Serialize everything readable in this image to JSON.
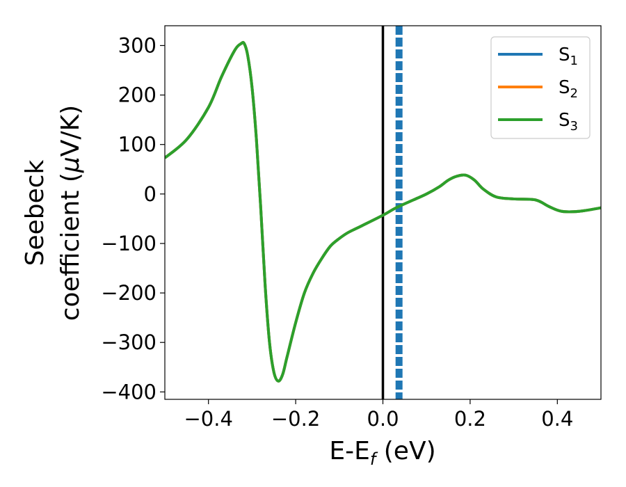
{
  "chart_data": {
    "type": "line",
    "xlabel": {
      "main": "E-E",
      "sub": "f",
      "unit": " (eV)"
    },
    "ylabel": {
      "line1": "Seebeck",
      "line2_prefix": "coefficient  (",
      "mu": "μ",
      "line2_suffix": "V/K)"
    },
    "xlim": [
      -0.5,
      0.5
    ],
    "ylim": [
      -415,
      340
    ],
    "xticks": [
      -0.4,
      -0.2,
      0.0,
      0.2,
      0.4
    ],
    "xtick_labels": [
      "−0.4",
      "−0.2",
      "0.0",
      "0.2",
      "0.4"
    ],
    "yticks": [
      300,
      200,
      100,
      0,
      -100,
      -200,
      -300,
      -400
    ],
    "ytick_labels": [
      "300",
      "200",
      "100",
      "0",
      "−100",
      "−200",
      "−300",
      "−400"
    ],
    "grid": false,
    "legend_position": "top-right",
    "x": [
      -0.5,
      -0.45,
      -0.4,
      -0.37,
      -0.34,
      -0.325,
      -0.318,
      -0.31,
      -0.3,
      -0.29,
      -0.28,
      -0.27,
      -0.26,
      -0.25,
      -0.24,
      -0.23,
      -0.22,
      -0.2,
      -0.18,
      -0.16,
      -0.14,
      -0.12,
      -0.1,
      -0.08,
      -0.05,
      0.0,
      0.03,
      0.07,
      0.1,
      0.13,
      0.15,
      0.17,
      0.19,
      0.21,
      0.23,
      0.26,
      0.3,
      0.35,
      0.38,
      0.41,
      0.45,
      0.5
    ],
    "series": [
      {
        "name_main": "S",
        "name_sub": "1",
        "color": "#1f77b4",
        "values": [
          73,
          110,
          175,
          237,
          290,
          304,
          304,
          280,
          215,
          110,
          -30,
          -185,
          -300,
          -360,
          -378,
          -365,
          -330,
          -260,
          -200,
          -160,
          -130,
          -105,
          -90,
          -78,
          -65,
          -43,
          -28,
          -12,
          0,
          15,
          28,
          36,
          38,
          28,
          10,
          -6,
          -10,
          -12,
          -25,
          -35,
          -35,
          -28
        ]
      },
      {
        "name_main": "S",
        "name_sub": "2",
        "color": "#ff7f0e",
        "values": [
          73,
          110,
          175,
          237,
          290,
          304,
          304,
          280,
          215,
          110,
          -30,
          -185,
          -300,
          -360,
          -378,
          -365,
          -330,
          -260,
          -200,
          -160,
          -130,
          -105,
          -90,
          -78,
          -65,
          -43,
          -28,
          -12,
          0,
          15,
          28,
          36,
          38,
          28,
          10,
          -6,
          -10,
          -12,
          -25,
          -35,
          -35,
          -28
        ]
      },
      {
        "name_main": "S",
        "name_sub": "3",
        "color": "#2ca02c",
        "values": [
          73,
          110,
          175,
          237,
          290,
          304,
          304,
          280,
          215,
          110,
          -30,
          -185,
          -300,
          -360,
          -378,
          -365,
          -330,
          -260,
          -200,
          -160,
          -130,
          -105,
          -90,
          -78,
          -65,
          -43,
          -28,
          -12,
          0,
          15,
          28,
          36,
          38,
          28,
          10,
          -6,
          -10,
          -12,
          -25,
          -35,
          -35,
          -28
        ]
      }
    ],
    "reference_lines": [
      {
        "x": 0.0,
        "color": "#000000",
        "style": "solid"
      },
      {
        "x": 0.037,
        "color": "#1f77b4",
        "style": "dashed"
      }
    ]
  }
}
